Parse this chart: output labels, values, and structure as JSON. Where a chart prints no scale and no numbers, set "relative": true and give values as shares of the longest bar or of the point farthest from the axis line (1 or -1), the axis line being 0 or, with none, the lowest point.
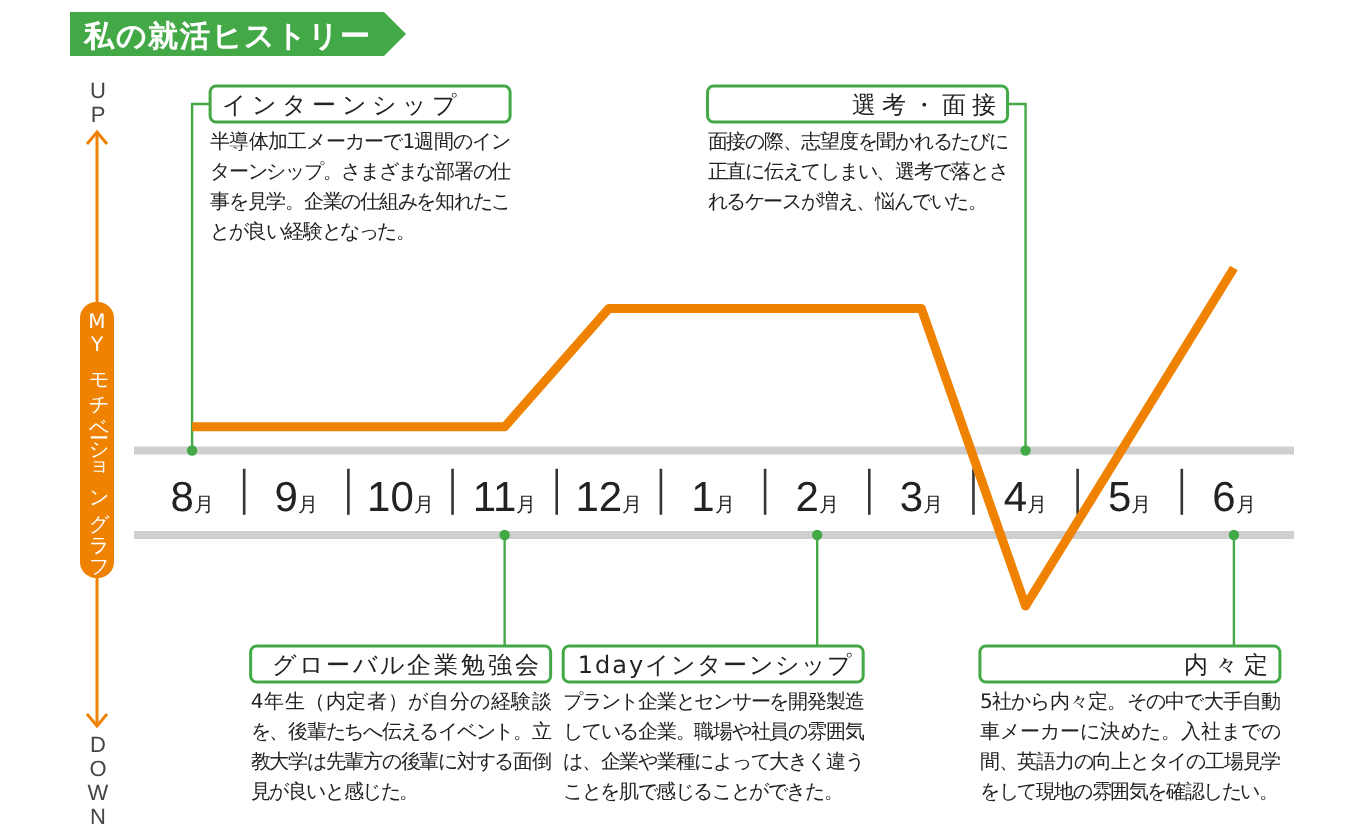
{
  "chart_data": {
    "type": "line",
    "title": "私の就活ヒストリー",
    "ylabel": "MYモチベーショングラフ",
    "relative": true,
    "categories": [
      "8月",
      "9月",
      "10月",
      "11月",
      "12月",
      "1月",
      "2月",
      "3月",
      "4月",
      "5月",
      "6月"
    ],
    "series": [
      {
        "color": "#ef8200",
        "values": [
          0.53,
          0.53,
          0.53,
          0.53,
          0.88,
          0.88,
          0.88,
          0.88,
          0,
          0.5,
          1
        ]
      }
    ],
    "ref_lines": [
      {
        "axis": "y",
        "value": 0.46,
        "color": "#cfcfcf"
      },
      {
        "axis": "y",
        "value": 0.21,
        "color": "#cfcfcf"
      }
    ],
    "annotations": [
      "UP",
      "DOWN",
      {
        "text": "インターンシップ",
        "x": "8月",
        "y": 0.46
      },
      "半導体加工メーカーで1週間のインターンシップ。さまざまな部署の仕事を見学。企業の仕組みを知れたことが良い経験となった。",
      {
        "text": "グローバル企業勉強会",
        "x": "11月",
        "y": 0.21
      },
      "4年生（内定者）が自分の経験談を、後輩たちへ伝えるイベント。立教大学は先輩方の後輩に対する面倒見が良いと感じた。",
      {
        "text": "1dayインターンシップ",
        "x": "2月",
        "y": 0.21
      },
      "プラント企業とセンサーを開発製造している企業。職場や社員の雰囲気は、企業や業種によって大きく違うことを肌で感じることができた。",
      {
        "text": "選考・面接",
        "x": "4月",
        "y": 0.46
      },
      "面接の際、志望度を聞かれるたびに正直に伝えてしまい、選考で落とされるケースが増え、悩んでいた。",
      {
        "text": "内々定",
        "x": "6月",
        "y": 0.21
      },
      "5社から内々定。その中で大手自動車メーカーに決めた。入社までの間、英語力の向上とタイの工場見学をして現地の雰囲気を確認したい。"
    ]
  }
}
